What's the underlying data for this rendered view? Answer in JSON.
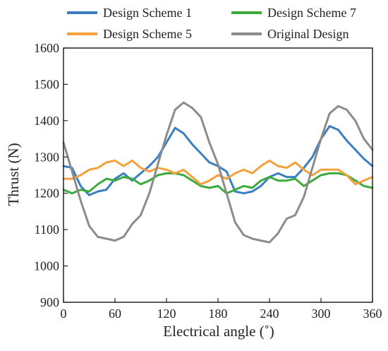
{
  "chart_data": {
    "type": "line",
    "title": "",
    "xlabel": "Electrical angle (˚)",
    "ylabel": "Thrust (N)",
    "xlim": [
      0,
      360
    ],
    "ylim": [
      900,
      1600
    ],
    "xticks": [
      0,
      60,
      120,
      180,
      240,
      300,
      360
    ],
    "yticks": [
      900,
      1000,
      1100,
      1200,
      1300,
      1400,
      1500,
      1600
    ],
    "grid": false,
    "legend_position": "top",
    "colors": {
      "Design Scheme 1": "#3a7fc1",
      "Design Scheme 7": "#3daa3d",
      "Design Scheme 5": "#f5a03b",
      "Original Design": "#8c8c8c"
    },
    "legend": [
      "Design Scheme 1",
      "Design Scheme 7",
      "Design Scheme 5",
      "Original Design"
    ],
    "x": [
      0,
      10,
      20,
      30,
      40,
      50,
      60,
      70,
      80,
      90,
      100,
      110,
      120,
      130,
      140,
      150,
      160,
      170,
      180,
      190,
      200,
      210,
      220,
      230,
      240,
      250,
      260,
      270,
      280,
      290,
      300,
      310,
      320,
      330,
      340,
      350,
      360
    ],
    "series": [
      {
        "name": "Design Scheme 1",
        "values": [
          1275,
          1270,
          1220,
          1195,
          1205,
          1210,
          1240,
          1255,
          1235,
          1255,
          1275,
          1300,
          1340,
          1380,
          1365,
          1335,
          1310,
          1285,
          1275,
          1260,
          1205,
          1200,
          1205,
          1220,
          1245,
          1255,
          1245,
          1245,
          1270,
          1300,
          1350,
          1385,
          1375,
          1345,
          1320,
          1295,
          1275
        ]
      },
      {
        "name": "Design Scheme 7",
        "values": [
          1210,
          1200,
          1210,
          1205,
          1225,
          1240,
          1235,
          1245,
          1240,
          1225,
          1235,
          1250,
          1255,
          1255,
          1250,
          1235,
          1220,
          1215,
          1220,
          1200,
          1210,
          1220,
          1215,
          1235,
          1245,
          1235,
          1235,
          1240,
          1220,
          1235,
          1250,
          1255,
          1255,
          1250,
          1235,
          1220,
          1215
        ]
      },
      {
        "name": "Design Scheme 5",
        "values": [
          1240,
          1240,
          1250,
          1265,
          1270,
          1285,
          1290,
          1275,
          1290,
          1270,
          1260,
          1270,
          1265,
          1255,
          1265,
          1245,
          1225,
          1235,
          1250,
          1240,
          1255,
          1265,
          1255,
          1275,
          1290,
          1275,
          1270,
          1285,
          1265,
          1250,
          1265,
          1265,
          1265,
          1250,
          1225,
          1235,
          1245
        ]
      },
      {
        "name": "Original Design",
        "values": [
          1340,
          1260,
          1180,
          1110,
          1080,
          1075,
          1070,
          1080,
          1115,
          1140,
          1200,
          1280,
          1360,
          1430,
          1450,
          1435,
          1410,
          1340,
          1280,
          1200,
          1120,
          1085,
          1075,
          1070,
          1065,
          1090,
          1130,
          1140,
          1190,
          1270,
          1350,
          1420,
          1440,
          1430,
          1400,
          1350,
          1320
        ]
      }
    ]
  }
}
